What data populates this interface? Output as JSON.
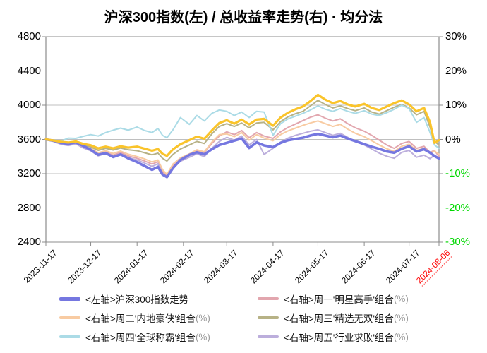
{
  "chart_data": {
    "type": "line",
    "title": "沪深300指数(左) / 总收益率走势(右) · 均分法",
    "left_axis": {
      "labels": [
        "4800",
        "4400",
        "4000",
        "3600",
        "3200",
        "2800",
        "2400"
      ],
      "values": [
        4800,
        4400,
        4000,
        3600,
        3200,
        2800,
        2400
      ],
      "min": 2400,
      "max": 4800,
      "step": 400
    },
    "right_axis": {
      "labels": [
        "30%",
        "20%",
        "10%",
        "0%",
        "-10%",
        "-20%",
        "-30%"
      ],
      "values": [
        30,
        20,
        10,
        0,
        -10,
        -20,
        -30
      ],
      "min": -30,
      "max": 30,
      "step": 10,
      "negative_label_color": "#00d800",
      "label_color": "#000000"
    },
    "x_axis": {
      "labels": [
        "2023-11-17",
        "2023-12-17",
        "2024-01-17",
        "2024-02-17",
        "2024-03-17",
        "2024-04-17",
        "2024-05-17",
        "2024-06-17",
        "2024-07-17",
        "2024-08-06"
      ],
      "tick_days": [
        0,
        30,
        61,
        92,
        121,
        152,
        182,
        213,
        243,
        263
      ],
      "total_days": 263,
      "last_label_color": "#ff0000"
    },
    "grid": true,
    "legend_position": "bottom",
    "days": [
      0,
      5,
      10,
      15,
      20,
      25,
      30,
      35,
      40,
      45,
      50,
      55,
      61,
      66,
      71,
      75,
      78,
      81,
      85,
      90,
      96,
      101,
      106,
      111,
      116,
      121,
      126,
      131,
      136,
      141,
      146,
      152,
      157,
      162,
      167,
      172,
      177,
      182,
      187,
      192,
      197,
      202,
      207,
      213,
      218,
      223,
      228,
      233,
      238,
      243,
      248,
      253,
      257,
      260,
      263
    ],
    "series": [
      {
        "key": "mon-star",
        "name": "<右轴>周一'明星高手'组合(%)",
        "axis": "right",
        "color": "#E2A6AE",
        "width": 2,
        "in_legend": true,
        "values": [
          0,
          -0.5,
          -1.2,
          -1.5,
          -1.1,
          -2.2,
          -2.9,
          -4.3,
          -3.7,
          -4.6,
          -3.8,
          -4.8,
          -5.5,
          -6.3,
          -7.2,
          -6.5,
          -9.3,
          -10.8,
          -7.8,
          -5.8,
          -4.4,
          -3.2,
          -3.8,
          -1.2,
          1.0,
          2.2,
          1.4,
          2.6,
          0.5,
          2.0,
          1.0,
          0.3,
          2.2,
          3.5,
          4.5,
          5.5,
          6.5,
          7.2,
          6.2,
          5.4,
          6.0,
          4.6,
          3.4,
          2.4,
          1.2,
          -0.2,
          -1.6,
          -2.6,
          -1.2,
          -0.6,
          -2.6,
          -2.0,
          -3.8,
          -3.2,
          -5.0
        ]
      },
      {
        "key": "tue-inland",
        "name": "<右轴>周二'内地豪侠'组合(%)",
        "axis": "right",
        "color": "#F8CBA2",
        "width": 2,
        "in_legend": true,
        "values": [
          0,
          -0.4,
          -1.0,
          -1.3,
          -0.9,
          -1.9,
          -2.6,
          -3.9,
          -3.3,
          -4.1,
          -3.4,
          -4.3,
          -5.0,
          -5.7,
          -6.6,
          -6.0,
          -8.8,
          -10.2,
          -7.2,
          -5.4,
          -4.2,
          -3.0,
          -3.6,
          -0.8,
          1.4,
          1.6,
          0.8,
          2.0,
          -0.2,
          1.4,
          0.4,
          -0.4,
          1.4,
          2.5,
          3.3,
          4.1,
          4.8,
          5.4,
          4.6,
          3.8,
          4.4,
          3.0,
          1.8,
          0.8,
          -0.4,
          -1.6,
          -2.7,
          -3.5,
          -2.0,
          -1.4,
          -3.2,
          -2.6,
          -4.0,
          -3.4,
          -4.3
        ]
      },
      {
        "key": "wed-select",
        "name": "<右轴>周三'精选无双'组合(%)",
        "axis": "right",
        "color": "#B7B286",
        "width": 2,
        "in_legend": true,
        "values": [
          0,
          -0.3,
          -0.8,
          -1.0,
          -0.7,
          -1.5,
          -2.2,
          -3.2,
          -2.6,
          -3.1,
          -2.5,
          -3.0,
          -3.3,
          -3.9,
          -4.5,
          -4.0,
          -5.5,
          -6.3,
          -4.4,
          -2.8,
          -1.6,
          -0.6,
          -1.2,
          1.6,
          3.8,
          4.6,
          3.8,
          4.8,
          3.4,
          4.8,
          5.0,
          2.8,
          5.2,
          6.6,
          7.5,
          8.2,
          9.8,
          11.4,
          10.2,
          9.2,
          9.8,
          9.0,
          8.4,
          9.2,
          8.0,
          7.4,
          8.4,
          9.4,
          10.2,
          9.2,
          7.2,
          8.2,
          3.6,
          -0.6,
          -1.6
        ]
      },
      {
        "key": "thu-global",
        "name": "<右轴>周四'全球称霸'组合(%)",
        "axis": "right",
        "color": "#ABDBE6",
        "width": 2,
        "in_legend": true,
        "values": [
          0,
          -0.2,
          -0.5,
          0.4,
          0.3,
          0.9,
          1.4,
          1.0,
          2.0,
          2.7,
          3.3,
          2.7,
          3.6,
          2.6,
          2.0,
          3.2,
          1.2,
          0.5,
          2.8,
          6.4,
          4.4,
          7.0,
          5.4,
          7.6,
          8.6,
          8.2,
          7.0,
          8.0,
          6.4,
          8.2,
          8.0,
          1.2,
          4.6,
          6.0,
          6.8,
          7.6,
          8.6,
          9.8,
          8.8,
          8.2,
          9.0,
          8.2,
          7.6,
          8.4,
          7.4,
          7.0,
          7.8,
          8.8,
          10.0,
          9.0,
          5.0,
          6.4,
          2.0,
          -1.6,
          -2.6
        ]
      },
      {
        "key": "fri-industry",
        "name": "<右轴>周五'行业求败'组合(%)",
        "axis": "right",
        "color": "#BCAEDC",
        "width": 2,
        "in_legend": true,
        "values": [
          0,
          -0.6,
          -1.4,
          -1.8,
          -1.3,
          -2.5,
          -3.3,
          -4.8,
          -4.1,
          -5.1,
          -4.3,
          -5.3,
          -6.0,
          -6.9,
          -7.9,
          -7.1,
          -10.0,
          -11.2,
          -8.4,
          -6.4,
          -5.2,
          -4.2,
          -5.0,
          -2.6,
          -0.6,
          0.6,
          -0.2,
          1.0,
          -1.6,
          0.0,
          -4.4,
          -2.6,
          -0.8,
          0.4,
          1.2,
          1.8,
          2.4,
          2.8,
          2.0,
          1.2,
          1.8,
          0.6,
          -0.6,
          -1.6,
          -2.8,
          -4.0,
          -4.9,
          -5.5,
          -3.8,
          -3.2,
          -5.2,
          -4.6,
          -5.6,
          -4.6,
          -5.9
        ]
      },
      {
        "key": "csi300",
        "name": "<左轴>沪深300指数走势",
        "axis": "left",
        "color": "#7577E0",
        "width": 3.6,
        "in_legend": true,
        "values": [
          3600,
          3585,
          3560,
          3550,
          3565,
          3525,
          3480,
          3420,
          3440,
          3395,
          3425,
          3380,
          3335,
          3290,
          3245,
          3280,
          3190,
          3160,
          3265,
          3360,
          3420,
          3450,
          3425,
          3485,
          3535,
          3560,
          3585,
          3610,
          3500,
          3565,
          3530,
          3510,
          3560,
          3590,
          3605,
          3620,
          3645,
          3665,
          3645,
          3625,
          3645,
          3610,
          3580,
          3545,
          3515,
          3490,
          3460,
          3445,
          3490,
          3520,
          3460,
          3485,
          3445,
          3405,
          3378
        ]
      },
      {
        "key": "avg-gold",
        "name": "",
        "axis": "right",
        "color": "#FAC42B",
        "width": 3.2,
        "in_legend": false,
        "values": [
          0,
          -0.3,
          -0.7,
          -0.9,
          -0.6,
          -1.3,
          -1.7,
          -2.6,
          -2.1,
          -2.6,
          -2.0,
          -2.4,
          -2.1,
          -2.7,
          -3.3,
          -2.8,
          -4.2,
          -4.8,
          -2.9,
          -1.4,
          -0.2,
          0.8,
          0.2,
          2.6,
          4.8,
          5.6,
          4.6,
          5.8,
          4.4,
          5.8,
          6.0,
          4.0,
          6.4,
          7.8,
          8.8,
          9.6,
          11.2,
          13.0,
          11.6,
          10.6,
          11.2,
          10.2,
          9.6,
          10.4,
          9.2,
          8.6,
          9.6,
          10.6,
          11.4,
          10.2,
          8.2,
          9.2,
          5.0,
          -1.0,
          -0.2
        ]
      }
    ],
    "legend": [
      {
        "series": "csi300",
        "label": "<左轴>沪深300指数走势",
        "suffix": ""
      },
      {
        "series": "mon-star",
        "label": "<右轴>周一'明星高手'组合",
        "suffix": "(%)"
      },
      {
        "series": "tue-inland",
        "label": "<右轴>周二'内地豪侠'组合",
        "suffix": "(%)"
      },
      {
        "series": "wed-select",
        "label": "<右轴>周三'精选无双'组合",
        "suffix": "(%)"
      },
      {
        "series": "thu-global",
        "label": "<右轴>周四'全球称霸'组合",
        "suffix": "(%)"
      },
      {
        "series": "fri-industry",
        "label": "<右轴>周五'行业求败'组合",
        "suffix": "(%)"
      }
    ],
    "colors": {
      "gridline": "#bfbfbf",
      "axis": "#8c8c8c",
      "background": "#ffffff"
    }
  }
}
